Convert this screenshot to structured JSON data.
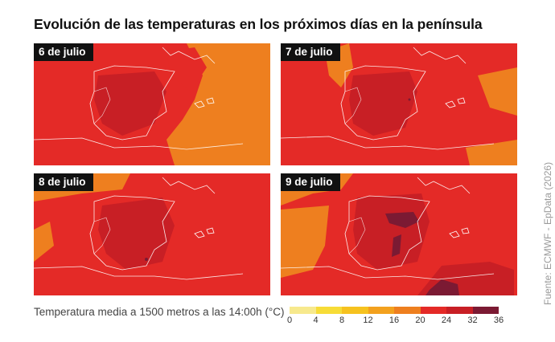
{
  "title": "Evolución de las temperaturas en los próximos días en la península",
  "panels": [
    {
      "label": "6 de julio",
      "sea_color": "#ee7f1f",
      "land_color": "#e42a27",
      "hot_color": "#c81f25",
      "extreme_color": "#7b1a33"
    },
    {
      "label": "7 de julio",
      "sea_color": "#ee7f1f",
      "land_color": "#e42a27",
      "hot_color": "#c81f25",
      "extreme_color": "#7b1a33"
    },
    {
      "label": "8 de julio",
      "sea_color": "#ee7f1f",
      "land_color": "#e42a27",
      "hot_color": "#c81f25",
      "extreme_color": "#7b1a33"
    },
    {
      "label": "9 de julio",
      "sea_color": "#ee7f1f",
      "land_color": "#e42a27",
      "hot_color": "#c81f25",
      "extreme_color": "#7b1a33"
    }
  ],
  "legend": {
    "caption": "Temperatura media a 1500 metros a las 14:00h (°C)",
    "ticks": [
      "0",
      "4",
      "8",
      "12",
      "16",
      "20",
      "24",
      "32",
      "36"
    ],
    "colors": [
      "#f7e98d",
      "#f7dc37",
      "#f6c21f",
      "#f3a11e",
      "#ee7f1f",
      "#e42a27",
      "#c81f25",
      "#7b1a33"
    ]
  },
  "source": "Fuente: ECMWF - EpData (2026)"
}
